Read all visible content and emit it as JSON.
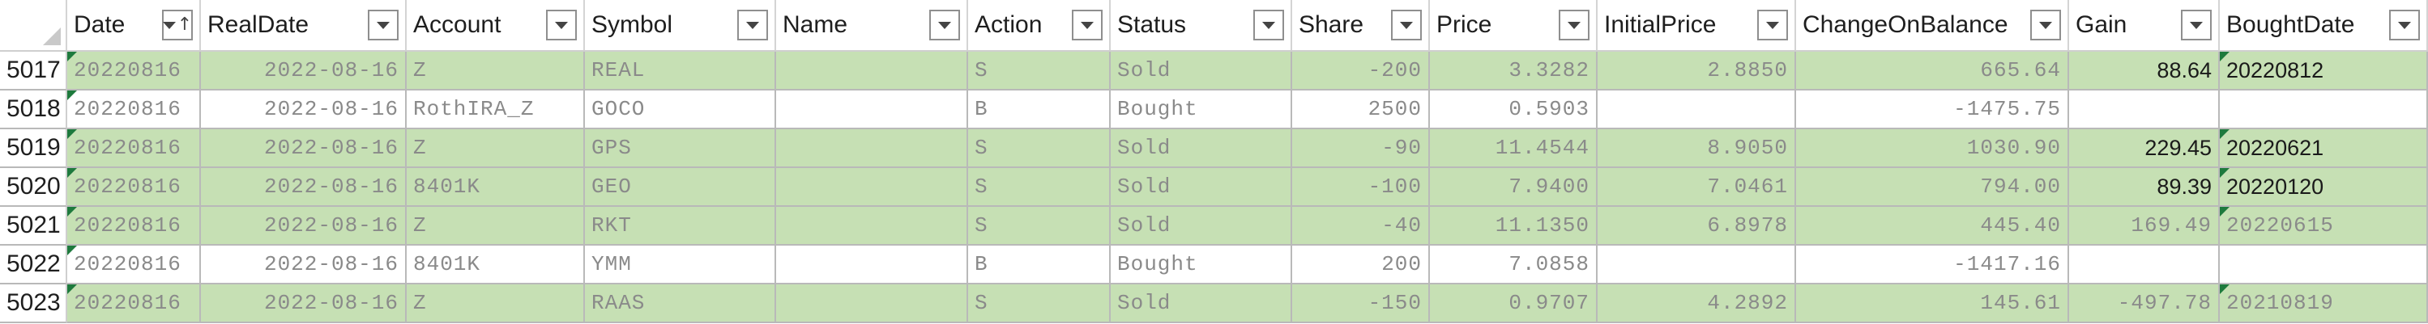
{
  "columns": [
    {
      "label": "Date",
      "sorted": true
    },
    {
      "label": "RealDate"
    },
    {
      "label": "Account"
    },
    {
      "label": "Symbol"
    },
    {
      "label": "Name"
    },
    {
      "label": "Action"
    },
    {
      "label": "Status"
    },
    {
      "label": "Share"
    },
    {
      "label": "Price"
    },
    {
      "label": "InitialPrice"
    },
    {
      "label": "ChangeOnBalance"
    },
    {
      "label": "Gain"
    },
    {
      "label": "BoughtDate"
    }
  ],
  "rows": [
    {
      "num": "5017",
      "kind": "sold",
      "date": "20220816",
      "realdate": "2022-08-16",
      "account": "Z",
      "symbol": "REAL",
      "name": "",
      "action": "S",
      "status": "Sold",
      "share": "-200",
      "price": "3.3282",
      "initial": "2.8850",
      "change": "665.64",
      "gain": "88.64",
      "bought": "20220812",
      "gain_plain": true
    },
    {
      "num": "5018",
      "kind": "bought",
      "date": "20220816",
      "realdate": "2022-08-16",
      "account": "RothIRA_Z",
      "symbol": "GOCO",
      "name": "",
      "action": "B",
      "status": "Bought",
      "share": "2500",
      "price": "0.5903",
      "initial": "",
      "change": "-1475.75",
      "gain": "",
      "bought": "",
      "gain_plain": false
    },
    {
      "num": "5019",
      "kind": "sold",
      "date": "20220816",
      "realdate": "2022-08-16",
      "account": "Z",
      "symbol": "GPS",
      "name": "",
      "action": "S",
      "status": "Sold",
      "share": "-90",
      "price": "11.4544",
      "initial": "8.9050",
      "change": "1030.90",
      "gain": "229.45",
      "bought": "20220621",
      "gain_plain": true
    },
    {
      "num": "5020",
      "kind": "sold",
      "date": "20220816",
      "realdate": "2022-08-16",
      "account": "8401K",
      "symbol": "GEO",
      "name": "",
      "action": "S",
      "status": "Sold",
      "share": "-100",
      "price": "7.9400",
      "initial": "7.0461",
      "change": "794.00",
      "gain": "89.39",
      "bought": "20220120",
      "gain_plain": true
    },
    {
      "num": "5021",
      "kind": "sold",
      "date": "20220816",
      "realdate": "2022-08-16",
      "account": "Z",
      "symbol": "RKT",
      "name": "",
      "action": "S",
      "status": "Sold",
      "share": "-40",
      "price": "11.1350",
      "initial": "6.8978",
      "change": "445.40",
      "gain": "169.49",
      "bought": "20220615",
      "gain_plain": false
    },
    {
      "num": "5022",
      "kind": "bought",
      "date": "20220816",
      "realdate": "2022-08-16",
      "account": "8401K",
      "symbol": "YMM",
      "name": "",
      "action": "B",
      "status": "Bought",
      "share": "200",
      "price": "7.0858",
      "initial": "",
      "change": "-1417.16",
      "gain": "",
      "bought": "",
      "gain_plain": false
    },
    {
      "num": "5023",
      "kind": "sold",
      "date": "20220816",
      "realdate": "2022-08-16",
      "account": "Z",
      "symbol": "RAAS",
      "name": "",
      "action": "S",
      "status": "Sold",
      "share": "-150",
      "price": "0.9707",
      "initial": "4.2892",
      "change": "145.61",
      "gain": "-497.78",
      "bought": "20210819",
      "gain_plain": false
    }
  ]
}
